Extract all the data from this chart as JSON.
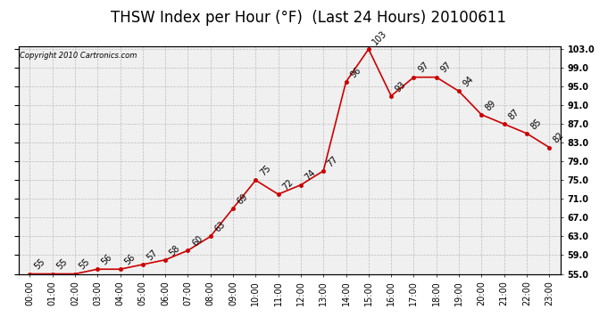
{
  "title": "THSW Index per Hour (°F)  (Last 24 Hours) 20100611",
  "copyright": "Copyright 2010 Cartronics.com",
  "hours": [
    0,
    1,
    2,
    3,
    4,
    5,
    6,
    7,
    8,
    9,
    10,
    11,
    12,
    13,
    14,
    15,
    16,
    17,
    18,
    19,
    20,
    21,
    22,
    23
  ],
  "values": [
    55,
    55,
    55,
    56,
    56,
    57,
    58,
    60,
    63,
    69,
    75,
    72,
    74,
    77,
    96,
    103,
    93,
    97,
    97,
    94,
    89,
    87,
    85,
    82
  ],
  "x_labels": [
    "00:00",
    "01:00",
    "02:00",
    "03:00",
    "04:00",
    "05:00",
    "06:00",
    "07:00",
    "08:00",
    "09:00",
    "10:00",
    "11:00",
    "12:00",
    "13:00",
    "14:00",
    "15:00",
    "16:00",
    "17:00",
    "18:00",
    "19:00",
    "20:00",
    "21:00",
    "22:00",
    "23:00"
  ],
  "line_color": "#cc0000",
  "marker_color": "#cc0000",
  "plot_bg_color": "#f0f0f0",
  "grid_color": "#bbbbbb",
  "title_fontsize": 12,
  "label_fontsize": 7,
  "annotation_fontsize": 7,
  "ylim_min": 55.0,
  "ylim_max": 103.0,
  "ytick_step": 4.0,
  "fig_bg_color": "#ffffff",
  "outer_bg_color": "#ffffff"
}
